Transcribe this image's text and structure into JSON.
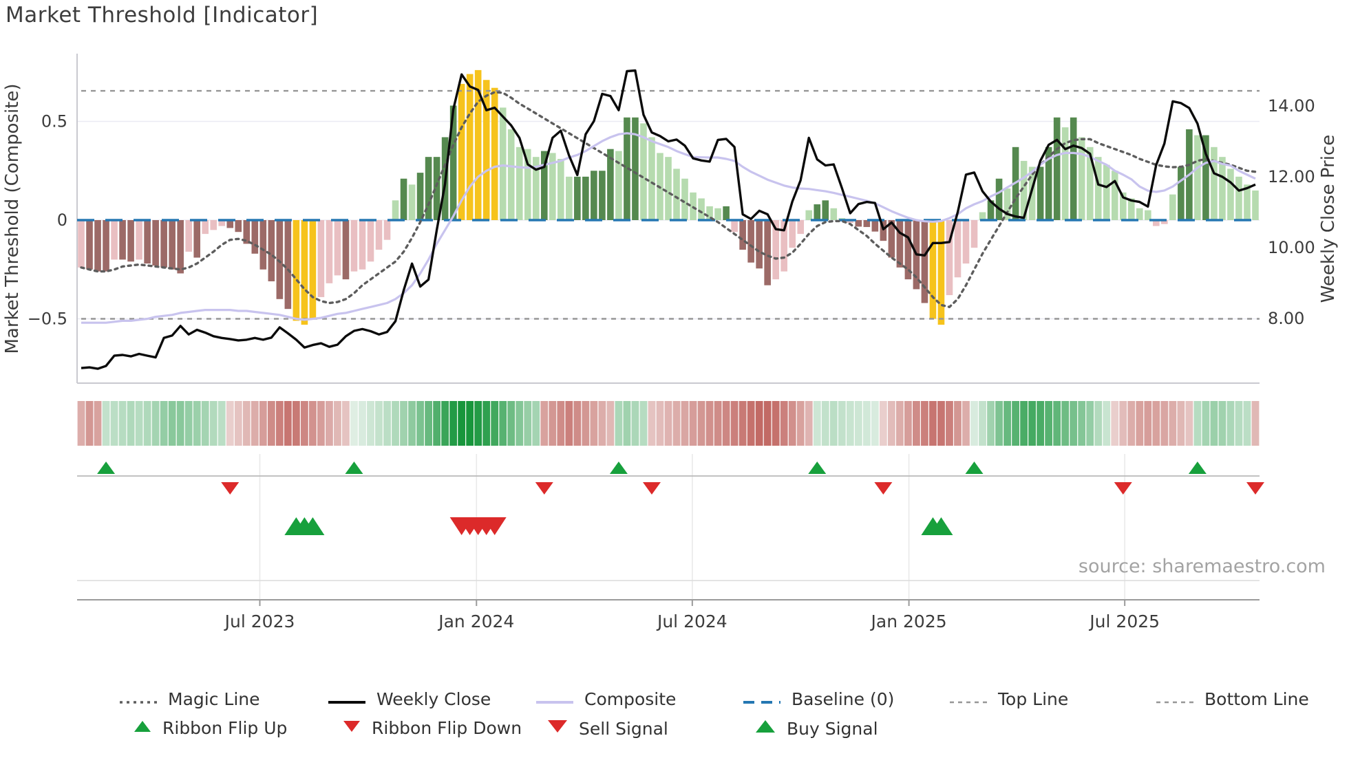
{
  "title": "Market Threshold [Indicator]",
  "source_text": "source: sharemaestro.com",
  "left_axis": {
    "label": "Market Threshold (Composite)",
    "ticks": [
      "0.5",
      "0",
      "−0.5"
    ],
    "tick_values": [
      0.5,
      0,
      -0.5
    ]
  },
  "right_axis": {
    "label": "Weekly Close Price",
    "ticks": [
      "14.00",
      "12.00",
      "10.00",
      "8.00"
    ],
    "tick_values": [
      14,
      12,
      10,
      8
    ]
  },
  "x_axis": {
    "tick_labels": [
      "Jul 2023",
      "Jan 2024",
      "Jul 2024",
      "Jan 2025",
      "Jul 2025"
    ],
    "tick_week_index": [
      22.1,
      48.3,
      74.4,
      100.6,
      126.7
    ]
  },
  "legend": {
    "row1": [
      {
        "label": "Magic Line",
        "type": "dotted-gray"
      },
      {
        "label": "Weekly Close",
        "type": "solid-black"
      },
      {
        "label": "Composite",
        "type": "solid-lavender"
      },
      {
        "label": "Baseline (0)",
        "type": "dashed-blue"
      },
      {
        "label": "Top Line",
        "type": "dashed-gray"
      },
      {
        "label": "Bottom Line",
        "type": "dashed-gray"
      }
    ],
    "row2": [
      {
        "label": "Ribbon Flip Up",
        "type": "triangle-up-green"
      },
      {
        "label": "Ribbon Flip Down",
        "type": "triangle-down-red"
      },
      {
        "label": "Sell Signal",
        "type": "triangle-down-red-large"
      },
      {
        "label": "Buy Signal",
        "type": "triangle-up-green-large"
      }
    ]
  },
  "colors": {
    "bar_light_pink": "#e9bfc2",
    "bar_dark_pink": "#9c6a67",
    "bar_light_green": "#b6dbaf",
    "bar_dark_green": "#55894f",
    "bar_yellow": "#f6c31c",
    "weekly_close": "#0b0b0b",
    "composite": "#c8c3ee",
    "magic": "#5d5d5d",
    "baseline": "#2577b2",
    "threshold_lines": "#969696",
    "ribbon_green": "#17963c",
    "ribbon_pink": "#b8504a",
    "signal_green": "#17a03c",
    "signal_red": "#dc2a2a",
    "grid": "#ebebf4",
    "spine": "#c9c9d0",
    "axis_text": "#3c3c3c",
    "source": "#a3a3a3"
  },
  "chart_data": {
    "type": "combo",
    "title": "Market Threshold [Indicator]",
    "weeks": 143,
    "ylabel_left": "Market Threshold (Composite)",
    "ylabel_right": "Weekly Close Price",
    "ylim_left": [
      -0.83,
      0.84
    ],
    "ylim_right": [
      6.2,
      15.5
    ],
    "grid": "horizontal-faint",
    "legend_position": "bottom",
    "thresholds": {
      "baseline": 0,
      "top_line": 0.655,
      "bottom_line": -0.5
    },
    "series": [
      {
        "name": "Market Threshold histogram",
        "type": "bar",
        "axis": "left",
        "values": [
          -0.24,
          -0.25,
          -0.26,
          -0.26,
          -0.2,
          -0.2,
          -0.21,
          -0.2,
          -0.22,
          -0.23,
          -0.24,
          -0.25,
          -0.27,
          -0.16,
          -0.19,
          -0.07,
          -0.05,
          -0.03,
          -0.04,
          -0.06,
          -0.12,
          -0.17,
          -0.25,
          -0.31,
          -0.4,
          -0.45,
          -0.51,
          -0.53,
          -0.5,
          -0.39,
          -0.32,
          -0.28,
          -0.3,
          -0.26,
          -0.25,
          -0.21,
          -0.15,
          -0.1,
          0.1,
          0.21,
          0.18,
          0.24,
          0.32,
          0.32,
          0.42,
          0.58,
          0.69,
          0.74,
          0.76,
          0.71,
          0.67,
          0.57,
          0.46,
          0.37,
          0.36,
          0.32,
          0.35,
          0.34,
          0.31,
          0.22,
          0.22,
          0.22,
          0.25,
          0.25,
          0.36,
          0.35,
          0.52,
          0.52,
          0.49,
          0.42,
          0.34,
          0.32,
          0.26,
          0.21,
          0.14,
          0.11,
          0.07,
          0.06,
          0.07,
          -0.06,
          -0.15,
          -0.215,
          -0.245,
          -0.33,
          -0.3,
          -0.26,
          -0.14,
          -0.07,
          0.05,
          0.08,
          0.1,
          0.06,
          0.01,
          -0.014,
          -0.033,
          -0.035,
          -0.058,
          -0.105,
          -0.19,
          -0.24,
          -0.3,
          -0.35,
          -0.42,
          -0.5,
          -0.53,
          -0.38,
          -0.29,
          -0.22,
          -0.14,
          0.04,
          0.1,
          0.21,
          0.16,
          0.37,
          0.3,
          0.27,
          0.27,
          0.37,
          0.52,
          0.47,
          0.52,
          0.42,
          0.37,
          0.32,
          0.28,
          0.25,
          0.14,
          0.11,
          0.06,
          0.05,
          -0.03,
          -0.02,
          0.13,
          0.27,
          0.46,
          0.43,
          0.43,
          0.37,
          0.32,
          0.26,
          0.22,
          0.18,
          0.15
        ]
      },
      {
        "name": "Weekly Close",
        "type": "line",
        "axis": "right",
        "values": [
          6.6,
          6.62,
          6.58,
          6.66,
          6.95,
          6.97,
          6.93,
          7.0,
          6.95,
          6.9,
          7.45,
          7.52,
          7.79,
          7.55,
          7.68,
          7.6,
          7.5,
          7.45,
          7.42,
          7.38,
          7.4,
          7.45,
          7.4,
          7.46,
          7.75,
          7.58,
          7.4,
          7.18,
          7.25,
          7.3,
          7.2,
          7.26,
          7.5,
          7.65,
          7.7,
          7.64,
          7.55,
          7.62,
          7.92,
          8.8,
          9.55,
          8.9,
          9.1,
          10.5,
          11.8,
          13.9,
          14.89,
          14.55,
          14.45,
          13.88,
          13.95,
          13.7,
          13.45,
          13.1,
          12.35,
          12.2,
          12.28,
          13.1,
          13.3,
          12.6,
          12.05,
          13.2,
          13.57,
          14.34,
          14.28,
          13.88,
          14.98,
          15.0,
          13.75,
          13.25,
          13.15,
          13.0,
          13.05,
          12.88,
          12.52,
          12.46,
          12.43,
          13.04,
          13.07,
          12.84,
          10.94,
          10.81,
          11.04,
          10.94,
          10.52,
          10.49,
          11.3,
          11.9,
          13.1,
          12.49,
          12.32,
          12.35,
          11.68,
          10.97,
          11.23,
          11.29,
          11.26,
          10.52,
          10.71,
          10.42,
          10.29,
          9.81,
          9.78,
          10.13,
          10.13,
          10.16,
          11.0,
          12.06,
          12.12,
          11.59,
          11.3,
          11.1,
          10.95,
          10.88,
          10.84,
          11.65,
          12.45,
          12.9,
          13.04,
          12.78,
          12.88,
          12.81,
          12.65,
          11.78,
          11.71,
          11.88,
          11.42,
          11.33,
          11.29,
          11.16,
          12.33,
          12.94,
          14.13,
          14.08,
          13.94,
          13.5,
          12.65,
          12.1,
          12.0,
          11.84,
          11.61,
          11.68,
          11.78
        ]
      },
      {
        "name": "Composite",
        "type": "line",
        "axis": "left",
        "values": [
          -0.52,
          -0.52,
          -0.52,
          -0.52,
          -0.515,
          -0.51,
          -0.51,
          -0.505,
          -0.5,
          -0.49,
          -0.485,
          -0.48,
          -0.47,
          -0.465,
          -0.46,
          -0.455,
          -0.455,
          -0.455,
          -0.455,
          -0.46,
          -0.46,
          -0.465,
          -0.47,
          -0.475,
          -0.48,
          -0.49,
          -0.5,
          -0.505,
          -0.5,
          -0.495,
          -0.485,
          -0.475,
          -0.47,
          -0.46,
          -0.45,
          -0.44,
          -0.43,
          -0.42,
          -0.4,
          -0.37,
          -0.33,
          -0.27,
          -0.2,
          -0.12,
          -0.05,
          0.02,
          0.1,
          0.17,
          0.22,
          0.25,
          0.27,
          0.277,
          0.272,
          0.268,
          0.265,
          0.27,
          0.28,
          0.29,
          0.3,
          0.317,
          0.33,
          0.35,
          0.375,
          0.4,
          0.42,
          0.435,
          0.44,
          0.435,
          0.42,
          0.4,
          0.385,
          0.37,
          0.35,
          0.334,
          0.32,
          0.318,
          0.317,
          0.317,
          0.31,
          0.3,
          0.27,
          0.245,
          0.225,
          0.205,
          0.19,
          0.175,
          0.165,
          0.16,
          0.158,
          0.152,
          0.146,
          0.138,
          0.128,
          0.118,
          0.108,
          0.098,
          0.085,
          0.065,
          0.045,
          0.028,
          0.012,
          0.0,
          -0.006,
          -0.008,
          -0.005,
          0.01,
          0.03,
          0.06,
          0.08,
          0.096,
          0.12,
          0.14,
          0.166,
          0.19,
          0.215,
          0.245,
          0.28,
          0.31,
          0.33,
          0.34,
          0.34,
          0.335,
          0.32,
          0.3,
          0.28,
          0.25,
          0.23,
          0.207,
          0.17,
          0.149,
          0.143,
          0.15,
          0.17,
          0.2,
          0.23,
          0.265,
          0.29,
          0.3,
          0.285,
          0.276,
          0.25,
          0.23,
          0.21
        ]
      },
      {
        "name": "Magic Line",
        "type": "line",
        "axis": "left",
        "values": [
          -0.24,
          -0.25,
          -0.26,
          -0.26,
          -0.25,
          -0.235,
          -0.23,
          -0.225,
          -0.23,
          -0.235,
          -0.24,
          -0.245,
          -0.25,
          -0.24,
          -0.22,
          -0.19,
          -0.16,
          -0.125,
          -0.1,
          -0.095,
          -0.105,
          -0.125,
          -0.15,
          -0.175,
          -0.21,
          -0.25,
          -0.3,
          -0.35,
          -0.39,
          -0.41,
          -0.42,
          -0.415,
          -0.4,
          -0.37,
          -0.33,
          -0.3,
          -0.27,
          -0.24,
          -0.21,
          -0.16,
          -0.09,
          -0.01,
          0.08,
          0.18,
          0.28,
          0.38,
          0.47,
          0.54,
          0.6,
          0.63,
          0.648,
          0.645,
          0.62,
          0.59,
          0.565,
          0.54,
          0.515,
          0.49,
          0.465,
          0.44,
          0.415,
          0.39,
          0.365,
          0.34,
          0.315,
          0.29,
          0.265,
          0.24,
          0.215,
          0.19,
          0.165,
          0.14,
          0.115,
          0.09,
          0.065,
          0.04,
          0.015,
          -0.01,
          -0.04,
          -0.07,
          -0.1,
          -0.13,
          -0.16,
          -0.18,
          -0.195,
          -0.19,
          -0.165,
          -0.12,
          -0.07,
          -0.03,
          -0.01,
          -0.005,
          -0.005,
          -0.02,
          -0.05,
          -0.08,
          -0.12,
          -0.155,
          -0.19,
          -0.22,
          -0.25,
          -0.29,
          -0.34,
          -0.39,
          -0.43,
          -0.44,
          -0.4,
          -0.33,
          -0.25,
          -0.17,
          -0.1,
          -0.03,
          0.04,
          0.11,
          0.17,
          0.23,
          0.28,
          0.32,
          0.36,
          0.39,
          0.405,
          0.41,
          0.41,
          0.39,
          0.375,
          0.36,
          0.345,
          0.33,
          0.31,
          0.295,
          0.28,
          0.272,
          0.268,
          0.27,
          0.28,
          0.3,
          0.31,
          0.3,
          0.29,
          0.28,
          0.265,
          0.25,
          0.245
        ]
      },
      {
        "name": "Ribbon",
        "type": "heatmap-strip",
        "values": [
          -0.35,
          -0.45,
          -0.4,
          0.25,
          0.28,
          0.3,
          0.33,
          0.3,
          0.33,
          0.38,
          0.45,
          0.5,
          0.5,
          0.45,
          0.42,
          0.38,
          0.32,
          0.28,
          -0.2,
          -0.25,
          -0.3,
          -0.35,
          -0.42,
          -0.5,
          -0.55,
          -0.6,
          -0.58,
          -0.52,
          -0.47,
          -0.42,
          -0.36,
          -0.3,
          -0.25,
          0.12,
          0.15,
          0.2,
          0.24,
          0.28,
          0.33,
          0.4,
          0.48,
          0.56,
          0.65,
          0.75,
          0.85,
          0.95,
          1.0,
          1.0,
          0.95,
          0.9,
          0.82,
          0.72,
          0.62,
          0.52,
          0.44,
          0.38,
          -0.4,
          -0.45,
          -0.5,
          -0.55,
          -0.5,
          -0.45,
          -0.4,
          -0.35,
          -0.3,
          0.35,
          0.4,
          0.35,
          0.3,
          -0.25,
          -0.28,
          -0.32,
          -0.35,
          -0.38,
          -0.42,
          -0.45,
          -0.48,
          -0.5,
          -0.52,
          -0.55,
          -0.58,
          -0.62,
          -0.65,
          -0.65,
          -0.62,
          -0.55,
          -0.48,
          -0.4,
          -0.32,
          0.2,
          0.25,
          0.28,
          0.25,
          0.22,
          0.2,
          0.18,
          0.15,
          -0.2,
          -0.28,
          -0.35,
          -0.42,
          -0.5,
          -0.55,
          -0.6,
          -0.6,
          -0.55,
          -0.45,
          -0.35,
          0.15,
          0.25,
          0.4,
          0.55,
          0.65,
          0.72,
          0.78,
          0.8,
          0.78,
          0.72,
          0.68,
          0.62,
          0.58,
          0.52,
          0.45,
          0.32,
          0.22,
          -0.2,
          -0.28,
          -0.35,
          -0.4,
          -0.42,
          -0.4,
          -0.38,
          -0.35,
          -0.3,
          -0.25,
          0.3,
          0.38,
          0.42,
          0.4,
          0.35,
          0.3,
          0.28,
          -0.3
        ]
      }
    ],
    "signals": {
      "ribbon_flip_up_weeks": [
        3,
        33,
        65,
        89,
        108,
        135
      ],
      "ribbon_flip_down_weeks": [
        18,
        56,
        69,
        97,
        126,
        142
      ],
      "buy_signal_weeks": [
        26,
        27,
        28,
        103,
        104
      ],
      "sell_signal_weeks": [
        46,
        47,
        48,
        49,
        50
      ]
    }
  }
}
